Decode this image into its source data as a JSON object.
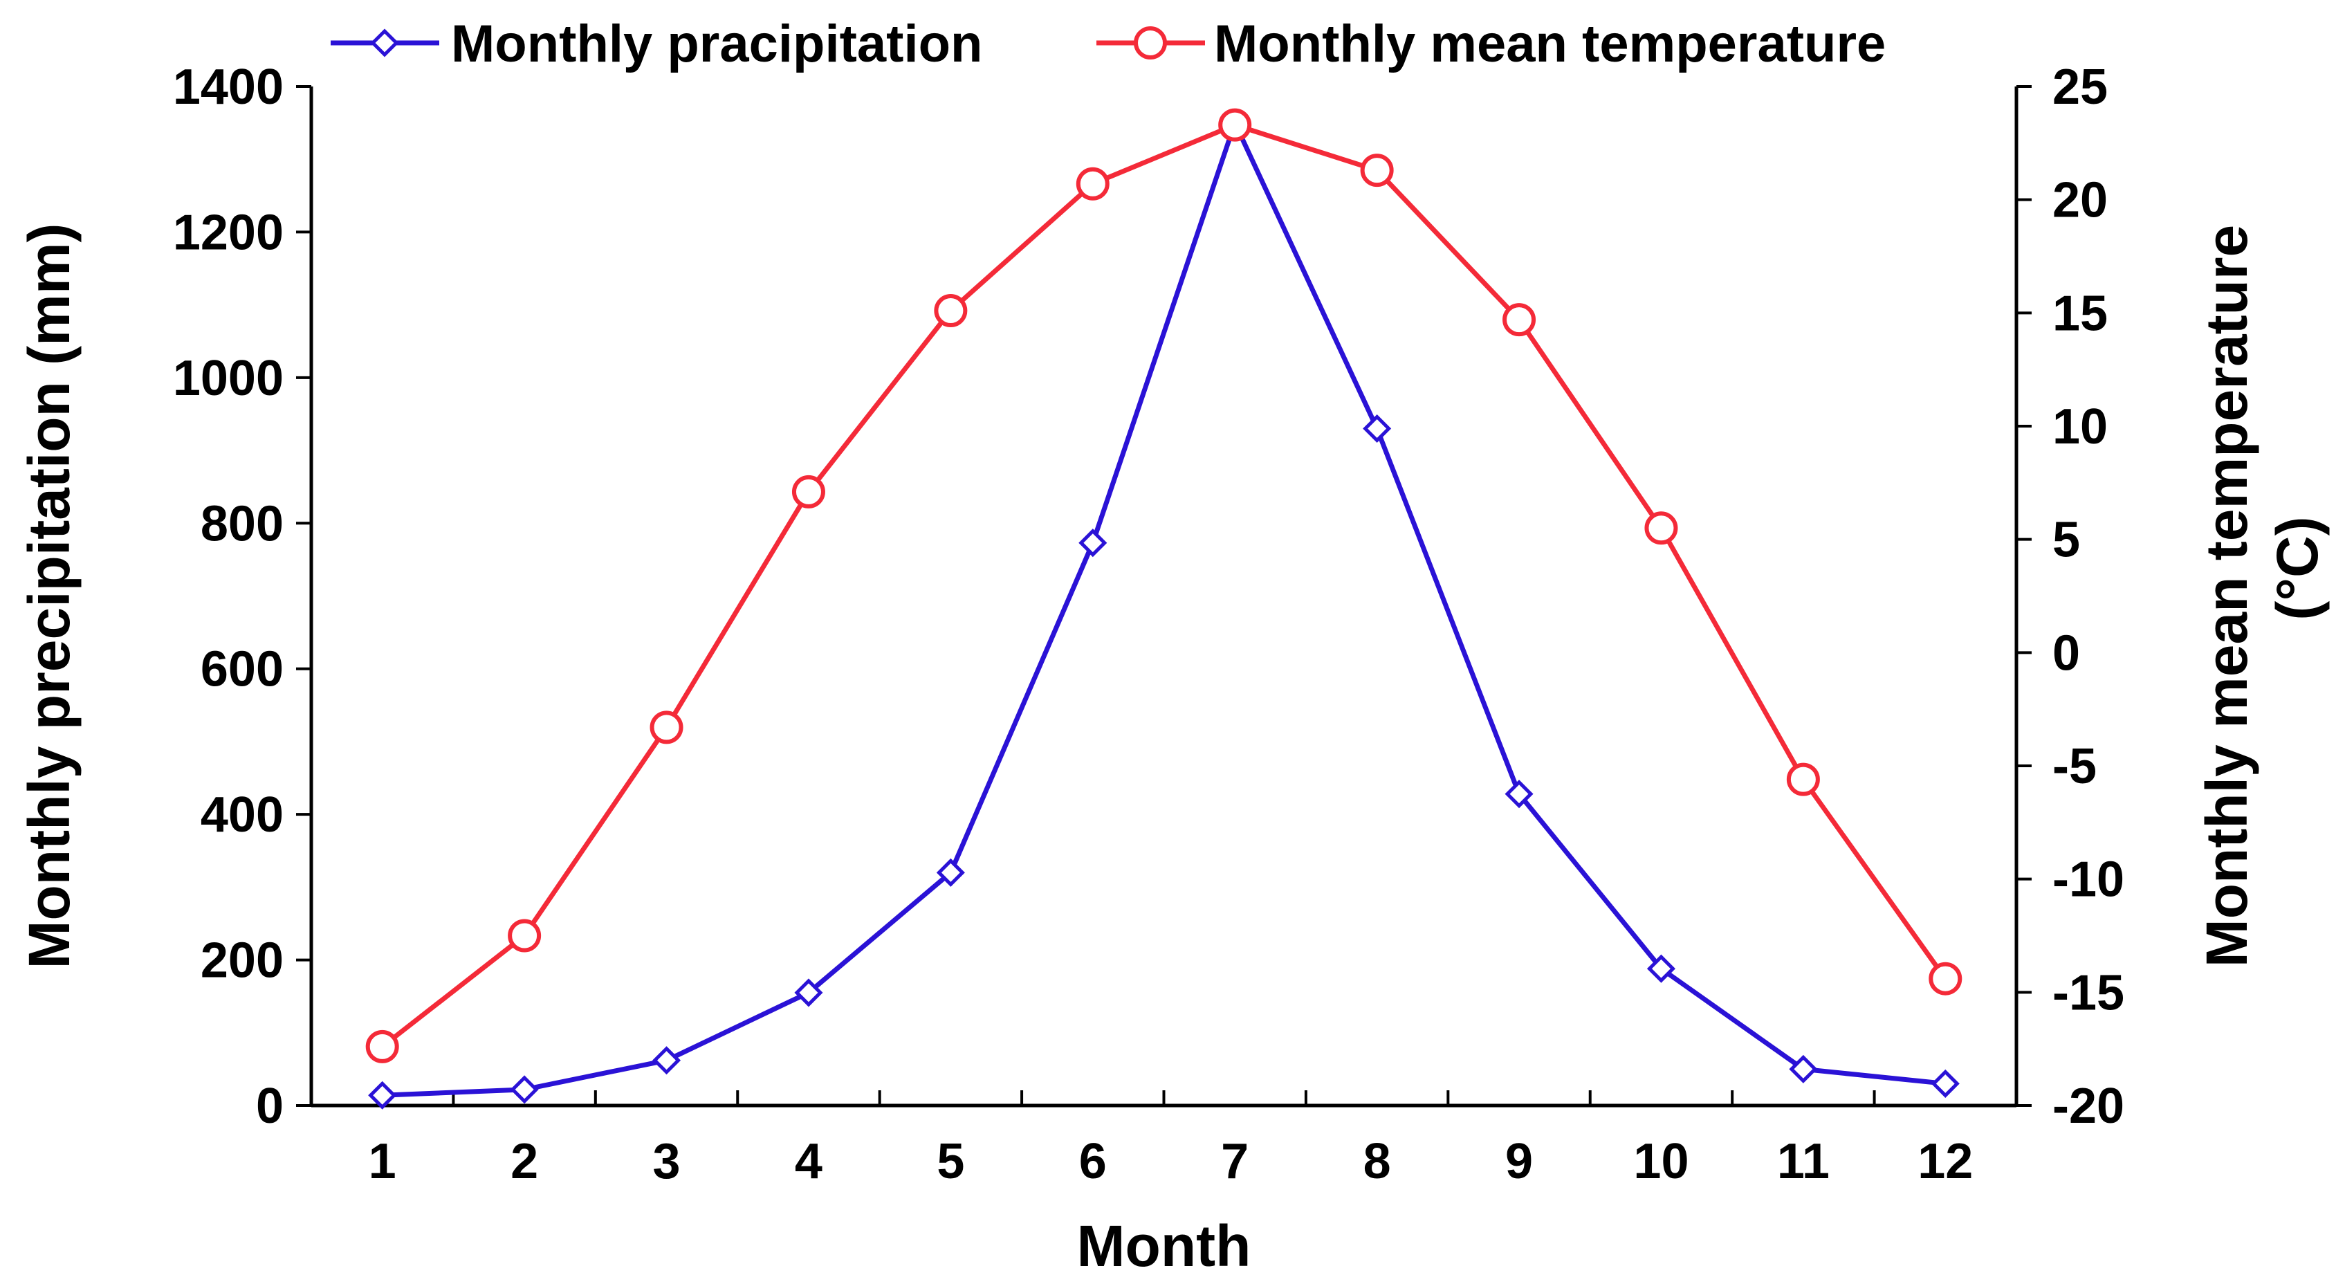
{
  "chart_data": {
    "type": "line",
    "title": "",
    "categories": [
      "1",
      "2",
      "3",
      "4",
      "5",
      "6",
      "7",
      "8",
      "9",
      "10",
      "11",
      "12"
    ],
    "xlabel": "Month",
    "ylabel": "Monthly precipitation (mm)",
    "ylabel_right_line1": "Monthly mean temperature",
    "ylabel_right_line2": "(°C)",
    "ylim": [
      0,
      1400
    ],
    "ylim_right": [
      -20,
      25
    ],
    "yticks": [
      0,
      200,
      400,
      600,
      800,
      1000,
      1200,
      1400
    ],
    "yticks_right": [
      -20,
      -15,
      -10,
      -5,
      0,
      5,
      10,
      15,
      20,
      25
    ],
    "legend_position": "top",
    "grid": false,
    "series": [
      {
        "name": "Monthly pracipitation",
        "axis": "left",
        "marker": "diamond",
        "color": "#2a12d6",
        "values": [
          14,
          22,
          62,
          155,
          320,
          773,
          1350,
          930,
          428,
          188,
          50,
          30
        ]
      },
      {
        "name": "Monthly mean temperature",
        "axis": "right",
        "marker": "circle",
        "color": "#f42a38",
        "values": [
          -17.4,
          -12.5,
          -3.3,
          7.1,
          15.1,
          20.7,
          23.3,
          21.3,
          14.7,
          5.5,
          -5.6,
          -14.4
        ]
      }
    ]
  }
}
